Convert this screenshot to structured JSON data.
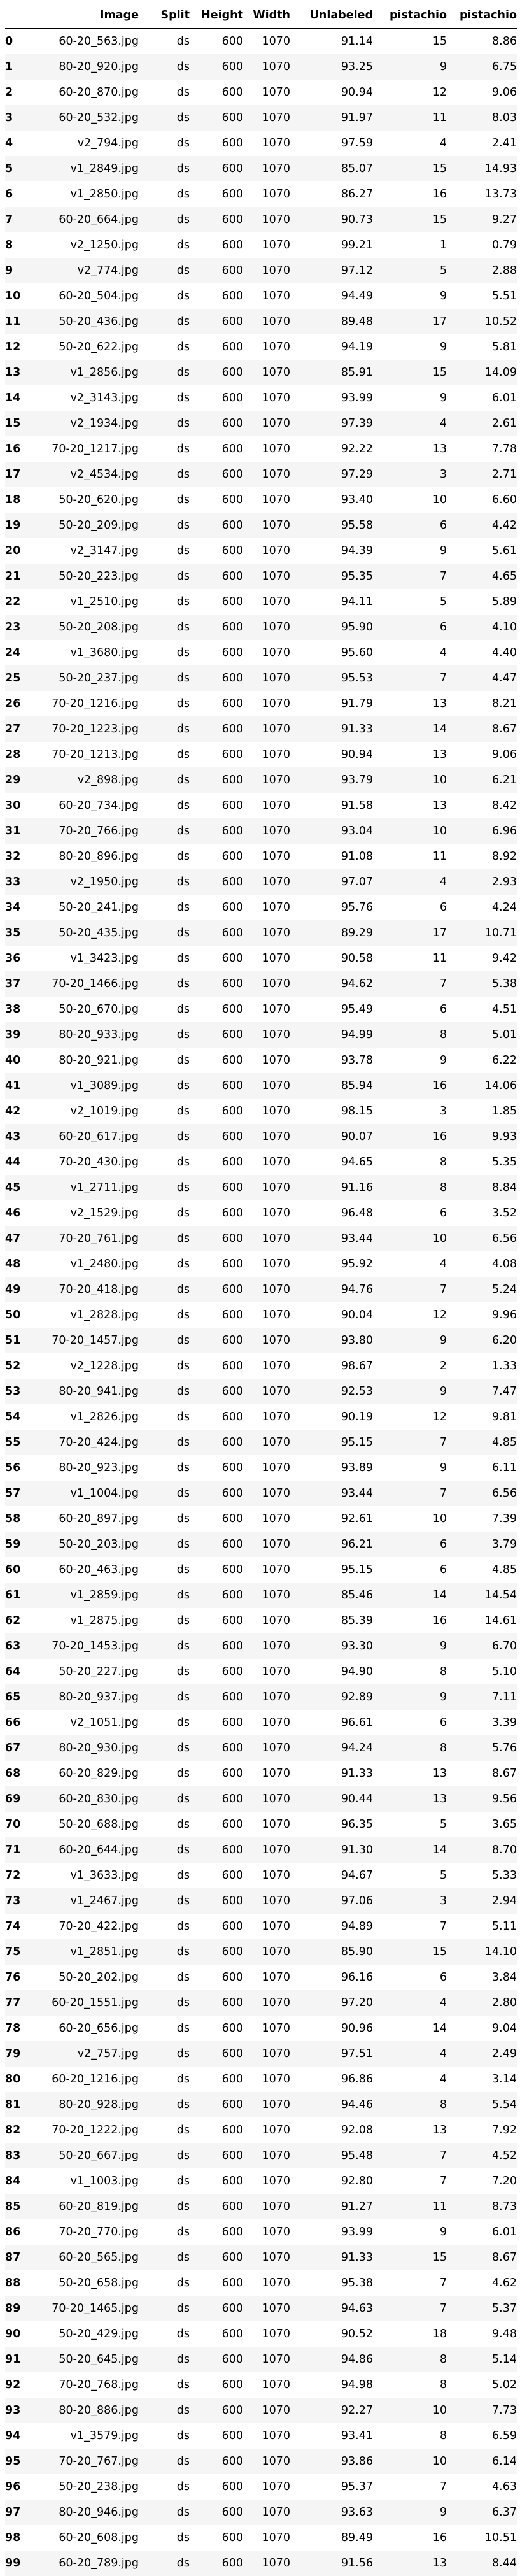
{
  "table": {
    "columns": [
      "",
      "Image",
      "Split",
      "Height",
      "Width",
      "Unlabeled",
      "pistachio",
      "pistachio"
    ],
    "rows": [
      [
        "0",
        "60-20_563.jpg",
        "ds",
        "600",
        "1070",
        "91.14",
        "15",
        "8.86"
      ],
      [
        "1",
        "80-20_920.jpg",
        "ds",
        "600",
        "1070",
        "93.25",
        "9",
        "6.75"
      ],
      [
        "2",
        "60-20_870.jpg",
        "ds",
        "600",
        "1070",
        "90.94",
        "12",
        "9.06"
      ],
      [
        "3",
        "60-20_532.jpg",
        "ds",
        "600",
        "1070",
        "91.97",
        "11",
        "8.03"
      ],
      [
        "4",
        "v2_794.jpg",
        "ds",
        "600",
        "1070",
        "97.59",
        "4",
        "2.41"
      ],
      [
        "5",
        "v1_2849.jpg",
        "ds",
        "600",
        "1070",
        "85.07",
        "15",
        "14.93"
      ],
      [
        "6",
        "v1_2850.jpg",
        "ds",
        "600",
        "1070",
        "86.27",
        "16",
        "13.73"
      ],
      [
        "7",
        "60-20_664.jpg",
        "ds",
        "600",
        "1070",
        "90.73",
        "15",
        "9.27"
      ],
      [
        "8",
        "v2_1250.jpg",
        "ds",
        "600",
        "1070",
        "99.21",
        "1",
        "0.79"
      ],
      [
        "9",
        "v2_774.jpg",
        "ds",
        "600",
        "1070",
        "97.12",
        "5",
        "2.88"
      ],
      [
        "10",
        "60-20_504.jpg",
        "ds",
        "600",
        "1070",
        "94.49",
        "9",
        "5.51"
      ],
      [
        "11",
        "50-20_436.jpg",
        "ds",
        "600",
        "1070",
        "89.48",
        "17",
        "10.52"
      ],
      [
        "12",
        "50-20_622.jpg",
        "ds",
        "600",
        "1070",
        "94.19",
        "9",
        "5.81"
      ],
      [
        "13",
        "v1_2856.jpg",
        "ds",
        "600",
        "1070",
        "85.91",
        "15",
        "14.09"
      ],
      [
        "14",
        "v2_3143.jpg",
        "ds",
        "600",
        "1070",
        "93.99",
        "9",
        "6.01"
      ],
      [
        "15",
        "v2_1934.jpg",
        "ds",
        "600",
        "1070",
        "97.39",
        "4",
        "2.61"
      ],
      [
        "16",
        "70-20_1217.jpg",
        "ds",
        "600",
        "1070",
        "92.22",
        "13",
        "7.78"
      ],
      [
        "17",
        "v2_4534.jpg",
        "ds",
        "600",
        "1070",
        "97.29",
        "3",
        "2.71"
      ],
      [
        "18",
        "50-20_620.jpg",
        "ds",
        "600",
        "1070",
        "93.40",
        "10",
        "6.60"
      ],
      [
        "19",
        "50-20_209.jpg",
        "ds",
        "600",
        "1070",
        "95.58",
        "6",
        "4.42"
      ],
      [
        "20",
        "v2_3147.jpg",
        "ds",
        "600",
        "1070",
        "94.39",
        "9",
        "5.61"
      ],
      [
        "21",
        "50-20_223.jpg",
        "ds",
        "600",
        "1070",
        "95.35",
        "7",
        "4.65"
      ],
      [
        "22",
        "v1_2510.jpg",
        "ds",
        "600",
        "1070",
        "94.11",
        "5",
        "5.89"
      ],
      [
        "23",
        "50-20_208.jpg",
        "ds",
        "600",
        "1070",
        "95.90",
        "6",
        "4.10"
      ],
      [
        "24",
        "v1_3680.jpg",
        "ds",
        "600",
        "1070",
        "95.60",
        "4",
        "4.40"
      ],
      [
        "25",
        "50-20_237.jpg",
        "ds",
        "600",
        "1070",
        "95.53",
        "7",
        "4.47"
      ],
      [
        "26",
        "70-20_1216.jpg",
        "ds",
        "600",
        "1070",
        "91.79",
        "13",
        "8.21"
      ],
      [
        "27",
        "70-20_1223.jpg",
        "ds",
        "600",
        "1070",
        "91.33",
        "14",
        "8.67"
      ],
      [
        "28",
        "70-20_1213.jpg",
        "ds",
        "600",
        "1070",
        "90.94",
        "13",
        "9.06"
      ],
      [
        "29",
        "v2_898.jpg",
        "ds",
        "600",
        "1070",
        "93.79",
        "10",
        "6.21"
      ],
      [
        "30",
        "60-20_734.jpg",
        "ds",
        "600",
        "1070",
        "91.58",
        "13",
        "8.42"
      ],
      [
        "31",
        "70-20_766.jpg",
        "ds",
        "600",
        "1070",
        "93.04",
        "10",
        "6.96"
      ],
      [
        "32",
        "80-20_896.jpg",
        "ds",
        "600",
        "1070",
        "91.08",
        "11",
        "8.92"
      ],
      [
        "33",
        "v2_1950.jpg",
        "ds",
        "600",
        "1070",
        "97.07",
        "4",
        "2.93"
      ],
      [
        "34",
        "50-20_241.jpg",
        "ds",
        "600",
        "1070",
        "95.76",
        "6",
        "4.24"
      ],
      [
        "35",
        "50-20_435.jpg",
        "ds",
        "600",
        "1070",
        "89.29",
        "17",
        "10.71"
      ],
      [
        "36",
        "v1_3423.jpg",
        "ds",
        "600",
        "1070",
        "90.58",
        "11",
        "9.42"
      ],
      [
        "37",
        "70-20_1466.jpg",
        "ds",
        "600",
        "1070",
        "94.62",
        "7",
        "5.38"
      ],
      [
        "38",
        "50-20_670.jpg",
        "ds",
        "600",
        "1070",
        "95.49",
        "6",
        "4.51"
      ],
      [
        "39",
        "80-20_933.jpg",
        "ds",
        "600",
        "1070",
        "94.99",
        "8",
        "5.01"
      ],
      [
        "40",
        "80-20_921.jpg",
        "ds",
        "600",
        "1070",
        "93.78",
        "9",
        "6.22"
      ],
      [
        "41",
        "v1_3089.jpg",
        "ds",
        "600",
        "1070",
        "85.94",
        "16",
        "14.06"
      ],
      [
        "42",
        "v2_1019.jpg",
        "ds",
        "600",
        "1070",
        "98.15",
        "3",
        "1.85"
      ],
      [
        "43",
        "60-20_617.jpg",
        "ds",
        "600",
        "1070",
        "90.07",
        "16",
        "9.93"
      ],
      [
        "44",
        "70-20_430.jpg",
        "ds",
        "600",
        "1070",
        "94.65",
        "8",
        "5.35"
      ],
      [
        "45",
        "v1_2711.jpg",
        "ds",
        "600",
        "1070",
        "91.16",
        "8",
        "8.84"
      ],
      [
        "46",
        "v2_1529.jpg",
        "ds",
        "600",
        "1070",
        "96.48",
        "6",
        "3.52"
      ],
      [
        "47",
        "70-20_761.jpg",
        "ds",
        "600",
        "1070",
        "93.44",
        "10",
        "6.56"
      ],
      [
        "48",
        "v1_2480.jpg",
        "ds",
        "600",
        "1070",
        "95.92",
        "4",
        "4.08"
      ],
      [
        "49",
        "70-20_418.jpg",
        "ds",
        "600",
        "1070",
        "94.76",
        "7",
        "5.24"
      ],
      [
        "50",
        "v1_2828.jpg",
        "ds",
        "600",
        "1070",
        "90.04",
        "12",
        "9.96"
      ],
      [
        "51",
        "70-20_1457.jpg",
        "ds",
        "600",
        "1070",
        "93.80",
        "9",
        "6.20"
      ],
      [
        "52",
        "v2_1228.jpg",
        "ds",
        "600",
        "1070",
        "98.67",
        "2",
        "1.33"
      ],
      [
        "53",
        "80-20_941.jpg",
        "ds",
        "600",
        "1070",
        "92.53",
        "9",
        "7.47"
      ],
      [
        "54",
        "v1_2826.jpg",
        "ds",
        "600",
        "1070",
        "90.19",
        "12",
        "9.81"
      ],
      [
        "55",
        "70-20_424.jpg",
        "ds",
        "600",
        "1070",
        "95.15",
        "7",
        "4.85"
      ],
      [
        "56",
        "80-20_923.jpg",
        "ds",
        "600",
        "1070",
        "93.89",
        "9",
        "6.11"
      ],
      [
        "57",
        "v1_1004.jpg",
        "ds",
        "600",
        "1070",
        "93.44",
        "7",
        "6.56"
      ],
      [
        "58",
        "60-20_897.jpg",
        "ds",
        "600",
        "1070",
        "92.61",
        "10",
        "7.39"
      ],
      [
        "59",
        "50-20_203.jpg",
        "ds",
        "600",
        "1070",
        "96.21",
        "6",
        "3.79"
      ],
      [
        "60",
        "60-20_463.jpg",
        "ds",
        "600",
        "1070",
        "95.15",
        "6",
        "4.85"
      ],
      [
        "61",
        "v1_2859.jpg",
        "ds",
        "600",
        "1070",
        "85.46",
        "14",
        "14.54"
      ],
      [
        "62",
        "v1_2875.jpg",
        "ds",
        "600",
        "1070",
        "85.39",
        "16",
        "14.61"
      ],
      [
        "63",
        "70-20_1453.jpg",
        "ds",
        "600",
        "1070",
        "93.30",
        "9",
        "6.70"
      ],
      [
        "64",
        "50-20_227.jpg",
        "ds",
        "600",
        "1070",
        "94.90",
        "8",
        "5.10"
      ],
      [
        "65",
        "80-20_937.jpg",
        "ds",
        "600",
        "1070",
        "92.89",
        "9",
        "7.11"
      ],
      [
        "66",
        "v2_1051.jpg",
        "ds",
        "600",
        "1070",
        "96.61",
        "6",
        "3.39"
      ],
      [
        "67",
        "80-20_930.jpg",
        "ds",
        "600",
        "1070",
        "94.24",
        "8",
        "5.76"
      ],
      [
        "68",
        "60-20_829.jpg",
        "ds",
        "600",
        "1070",
        "91.33",
        "13",
        "8.67"
      ],
      [
        "69",
        "60-20_830.jpg",
        "ds",
        "600",
        "1070",
        "90.44",
        "13",
        "9.56"
      ],
      [
        "70",
        "50-20_688.jpg",
        "ds",
        "600",
        "1070",
        "96.35",
        "5",
        "3.65"
      ],
      [
        "71",
        "60-20_644.jpg",
        "ds",
        "600",
        "1070",
        "91.30",
        "14",
        "8.70"
      ],
      [
        "72",
        "v1_3633.jpg",
        "ds",
        "600",
        "1070",
        "94.67",
        "5",
        "5.33"
      ],
      [
        "73",
        "v1_2467.jpg",
        "ds",
        "600",
        "1070",
        "97.06",
        "3",
        "2.94"
      ],
      [
        "74",
        "70-20_422.jpg",
        "ds",
        "600",
        "1070",
        "94.89",
        "7",
        "5.11"
      ],
      [
        "75",
        "v1_2851.jpg",
        "ds",
        "600",
        "1070",
        "85.90",
        "15",
        "14.10"
      ],
      [
        "76",
        "50-20_202.jpg",
        "ds",
        "600",
        "1070",
        "96.16",
        "6",
        "3.84"
      ],
      [
        "77",
        "60-20_1551.jpg",
        "ds",
        "600",
        "1070",
        "97.20",
        "4",
        "2.80"
      ],
      [
        "78",
        "60-20_656.jpg",
        "ds",
        "600",
        "1070",
        "90.96",
        "14",
        "9.04"
      ],
      [
        "79",
        "v2_757.jpg",
        "ds",
        "600",
        "1070",
        "97.51",
        "4",
        "2.49"
      ],
      [
        "80",
        "60-20_1216.jpg",
        "ds",
        "600",
        "1070",
        "96.86",
        "4",
        "3.14"
      ],
      [
        "81",
        "80-20_928.jpg",
        "ds",
        "600",
        "1070",
        "94.46",
        "8",
        "5.54"
      ],
      [
        "82",
        "70-20_1222.jpg",
        "ds",
        "600",
        "1070",
        "92.08",
        "13",
        "7.92"
      ],
      [
        "83",
        "50-20_667.jpg",
        "ds",
        "600",
        "1070",
        "95.48",
        "7",
        "4.52"
      ],
      [
        "84",
        "v1_1003.jpg",
        "ds",
        "600",
        "1070",
        "92.80",
        "7",
        "7.20"
      ],
      [
        "85",
        "60-20_819.jpg",
        "ds",
        "600",
        "1070",
        "91.27",
        "11",
        "8.73"
      ],
      [
        "86",
        "70-20_770.jpg",
        "ds",
        "600",
        "1070",
        "93.99",
        "9",
        "6.01"
      ],
      [
        "87",
        "60-20_565.jpg",
        "ds",
        "600",
        "1070",
        "91.33",
        "15",
        "8.67"
      ],
      [
        "88",
        "50-20_658.jpg",
        "ds",
        "600",
        "1070",
        "95.38",
        "7",
        "4.62"
      ],
      [
        "89",
        "70-20_1465.jpg",
        "ds",
        "600",
        "1070",
        "94.63",
        "7",
        "5.37"
      ],
      [
        "90",
        "50-20_429.jpg",
        "ds",
        "600",
        "1070",
        "90.52",
        "18",
        "9.48"
      ],
      [
        "91",
        "50-20_645.jpg",
        "ds",
        "600",
        "1070",
        "94.86",
        "8",
        "5.14"
      ],
      [
        "92",
        "70-20_768.jpg",
        "ds",
        "600",
        "1070",
        "94.98",
        "8",
        "5.02"
      ],
      [
        "93",
        "80-20_886.jpg",
        "ds",
        "600",
        "1070",
        "92.27",
        "10",
        "7.73"
      ],
      [
        "94",
        "v1_3579.jpg",
        "ds",
        "600",
        "1070",
        "93.41",
        "8",
        "6.59"
      ],
      [
        "95",
        "70-20_767.jpg",
        "ds",
        "600",
        "1070",
        "93.86",
        "10",
        "6.14"
      ],
      [
        "96",
        "50-20_238.jpg",
        "ds",
        "600",
        "1070",
        "95.37",
        "7",
        "4.63"
      ],
      [
        "97",
        "80-20_946.jpg",
        "ds",
        "600",
        "1070",
        "93.63",
        "9",
        "6.37"
      ],
      [
        "98",
        "60-20_608.jpg",
        "ds",
        "600",
        "1070",
        "89.49",
        "16",
        "10.51"
      ],
      [
        "99",
        "60-20_789.jpg",
        "ds",
        "600",
        "1070",
        "91.56",
        "13",
        "8.44"
      ]
    ]
  }
}
